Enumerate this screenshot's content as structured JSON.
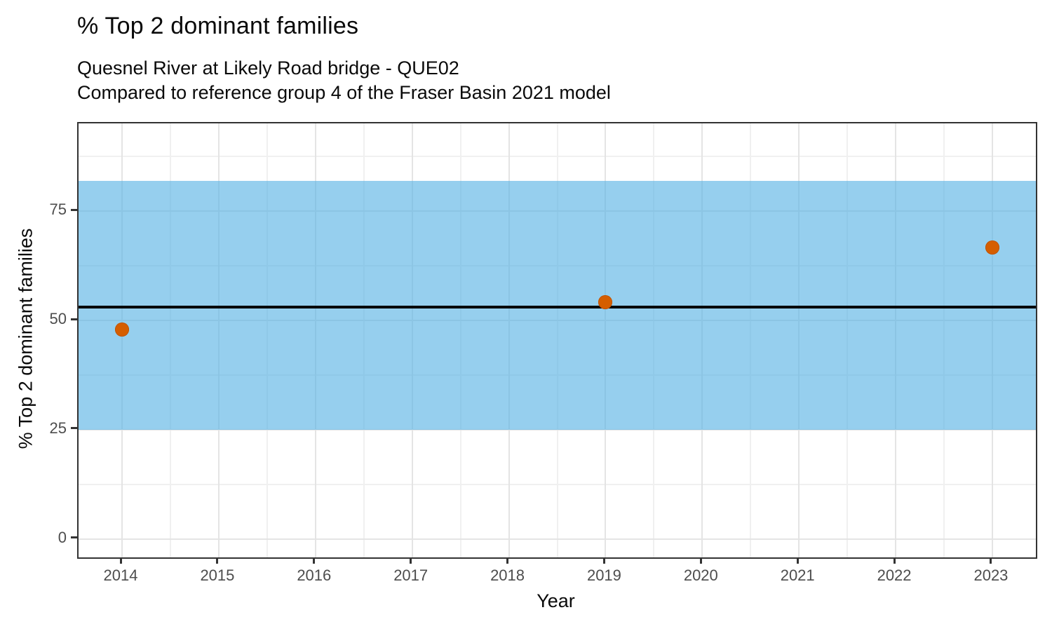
{
  "chart_data": {
    "type": "scatter",
    "title": "% Top 2 dominant families",
    "subtitle_line1": "Quesnel River at Likely Road bridge - QUE02",
    "subtitle_line2": "Compared to reference group 4 of the Fraser Basin 2021 model",
    "xlabel": "Year",
    "ylabel": "% Top 2 dominant families",
    "xlim": [
      2013.55,
      2023.45
    ],
    "ylim": [
      -4.2,
      95.1
    ],
    "x_ticks": [
      2014,
      2015,
      2016,
      2017,
      2018,
      2019,
      2020,
      2021,
      2022,
      2023
    ],
    "x_minor_ticks": [
      2014.5,
      2015.5,
      2016.5,
      2017.5,
      2018.5,
      2019.5,
      2020.5,
      2021.5,
      2022.5
    ],
    "y_ticks": [
      0,
      25,
      50,
      75
    ],
    "y_minor_ticks": [
      12.5,
      37.5,
      62.5,
      87.5
    ],
    "grid": true,
    "legend_position": "none",
    "points": [
      {
        "x": 2014,
        "y": 48.0
      },
      {
        "x": 2019,
        "y": 54.2
      },
      {
        "x": 2023,
        "y": 66.7
      }
    ],
    "reference_band": {
      "low": 25,
      "high": 82,
      "fill": "#56B2E3",
      "alpha": 0.62
    },
    "reference_line": {
      "value": 53,
      "color": "#000000"
    },
    "colors": {
      "point_fill": "#D55E00",
      "point_edge": "#C05400",
      "panel_border": "#333333",
      "grid_major": "#E4E4E4",
      "grid_minor": "#F0F0F0",
      "axis_tick": "#333333",
      "tick_label": "#4D4D4D",
      "text": "#0A0A0A"
    }
  }
}
